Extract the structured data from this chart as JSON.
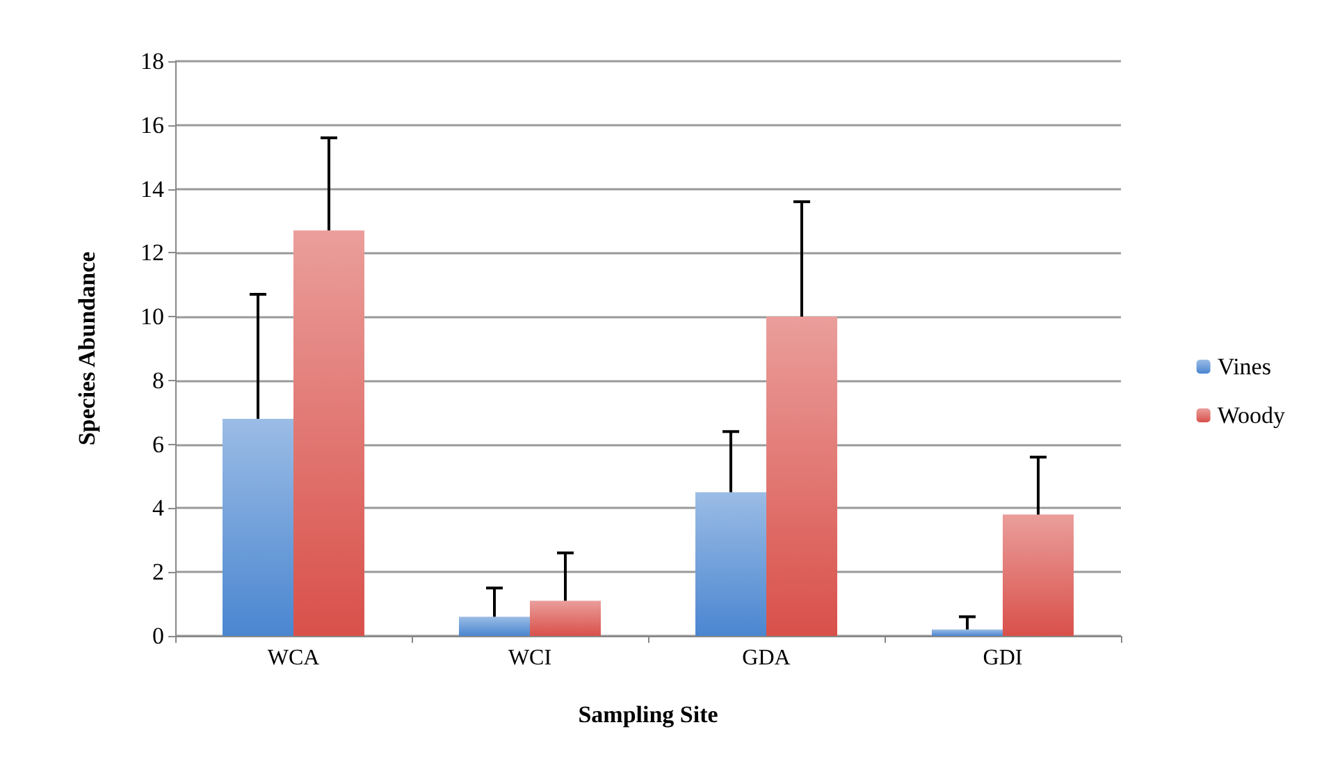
{
  "chart_data": {
    "type": "bar",
    "xlabel": "Sampling Site",
    "ylabel": "Species Abundance",
    "categories": [
      "WCA",
      "WCI",
      "GDA",
      "GDI"
    ],
    "series": [
      {
        "name": "Vines",
        "color": "#4a86d0",
        "values": [
          6.8,
          0.6,
          4.5,
          0.2
        ],
        "errors": [
          [
            6.8,
            10.7
          ],
          [
            0.6,
            1.5
          ],
          [
            4.5,
            6.4
          ],
          [
            0.2,
            0.6
          ]
        ]
      },
      {
        "name": "Woody",
        "color": "#d9504a",
        "values": [
          12.7,
          1.1,
          10.0,
          3.8
        ],
        "errors": [
          [
            12.7,
            15.6
          ],
          [
            1.1,
            2.6
          ],
          [
            10.0,
            13.6
          ],
          [
            3.8,
            5.6
          ]
        ]
      }
    ],
    "ylim": [
      0,
      18
    ],
    "yticks": [
      0,
      2,
      4,
      6,
      8,
      10,
      12,
      14,
      16,
      18
    ],
    "grid": "y",
    "legend": "right"
  }
}
